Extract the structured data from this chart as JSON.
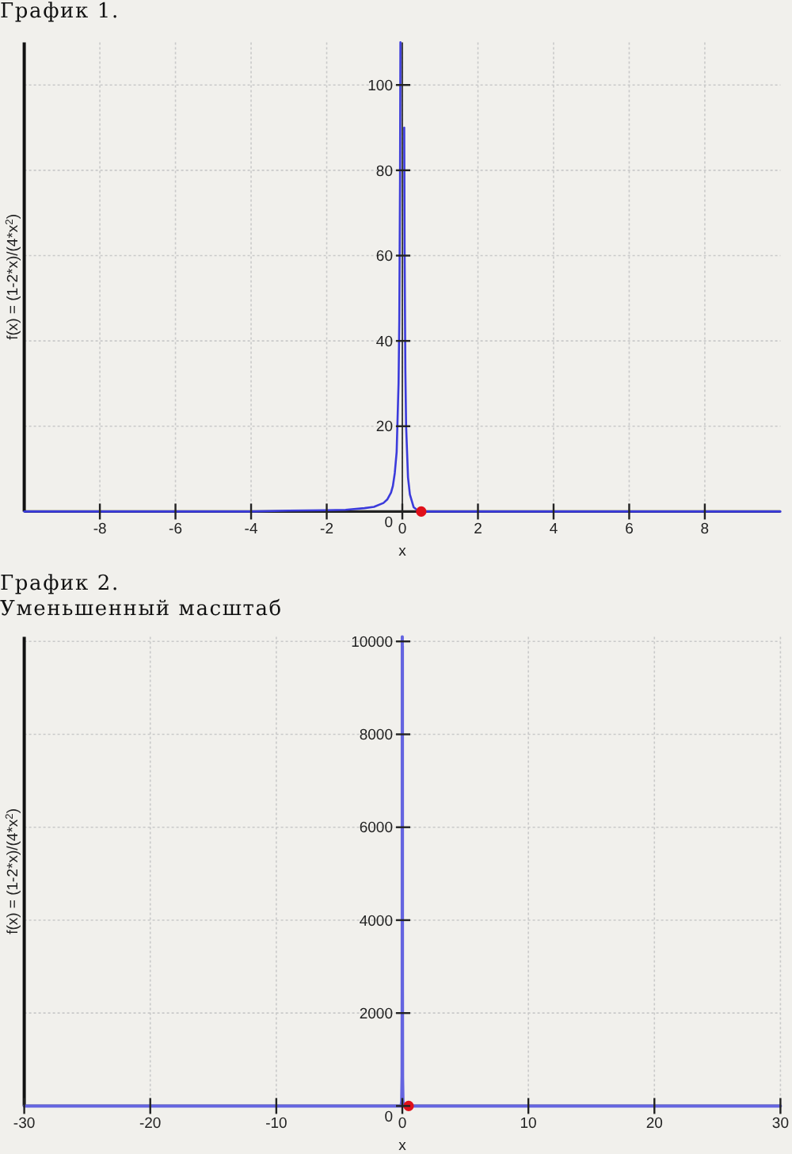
{
  "chart_data": [
    {
      "type": "line",
      "title": "График 1.",
      "xlabel": "x",
      "ylabel": "f(x) = (1-2*x)/(4*x$^{2}$)",
      "xlim": [
        -10,
        10
      ],
      "ylim": [
        0,
        110
      ],
      "xticks": [
        -8,
        -6,
        -4,
        -2,
        0,
        2,
        4,
        6,
        8
      ],
      "yticks": [
        0,
        20,
        40,
        60,
        80,
        100
      ],
      "grid": true,
      "series": [
        {
          "color": "#3b3bdb",
          "x": [
            -10,
            -8,
            -6,
            -4,
            -3,
            -2,
            -1.5,
            -1,
            -0.75,
            -0.5,
            -0.4,
            -0.3,
            -0.25,
            -0.2,
            -0.15,
            -0.1,
            -0.08,
            -0.06,
            -0.05,
            0,
            0.05,
            0.06,
            0.08,
            0.1,
            0.15,
            0.2,
            0.3,
            0.4,
            0.5,
            1,
            2,
            4,
            6,
            8,
            10
          ],
          "values": [
            0,
            0,
            0,
            0,
            0.2,
            0.3,
            0.4,
            0.8,
            1.1,
            2,
            2.8,
            4.4,
            6,
            9,
            14,
            30,
            45,
            78,
            110,
            null,
            90,
            61,
            33,
            20,
            8,
            4,
            1,
            0.3,
            0,
            0,
            0,
            0,
            0,
            0,
            0
          ]
        },
        {
          "type": "scatter",
          "color": "#e0101a",
          "marker": "circle",
          "x": [
            0.5
          ],
          "values": [
            0
          ]
        }
      ]
    },
    {
      "type": "line",
      "title": "График 2.",
      "subtitle": "Уменьшенный масштаб",
      "xlabel": "x",
      "ylabel": "f(x) = (1-2*x)/(4*x$^{2}$)",
      "xlim": [
        -30,
        30
      ],
      "ylim": [
        0,
        10100
      ],
      "xticks": [
        -30,
        -20,
        -10,
        0,
        10,
        20,
        30
      ],
      "yticks": [
        0,
        2000,
        4000,
        6000,
        8000,
        10000
      ],
      "grid": true,
      "series": [
        {
          "color": "#6464e0",
          "x": [
            -30,
            -20,
            -10,
            -5,
            -1,
            -0.1,
            -0.05,
            -0.02,
            -0.01,
            -0.005,
            0,
            0.005,
            0.01,
            0.02,
            0.05,
            0.1,
            0.5,
            1,
            5,
            10,
            20,
            30
          ],
          "values": [
            0,
            0,
            0,
            0,
            0,
            0,
            100,
            650,
            2550,
            10100,
            null,
            9900,
            2450,
            600,
            100,
            0,
            0,
            0,
            0,
            0,
            0,
            0
          ]
        },
        {
          "type": "scatter",
          "color": "#e0101a",
          "marker": "circle",
          "x": [
            0.5
          ],
          "values": [
            0
          ]
        }
      ]
    }
  ]
}
